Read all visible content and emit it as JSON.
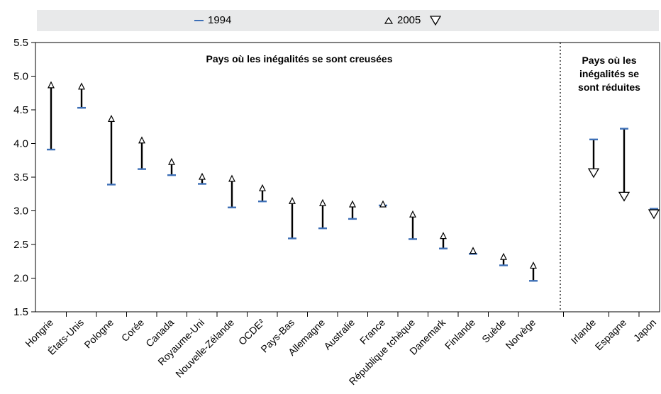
{
  "legend": {
    "item_1994": "1994",
    "item_2005": "2005"
  },
  "colors": {
    "marker_1994": "#3d6fb6",
    "range_line": "#000000",
    "plot_background": "#ffffff",
    "legend_background": "#e8e9ea"
  },
  "chart_data": {
    "type": "range-dot",
    "title": "",
    "xlabel": "",
    "ylabel": "",
    "ylim": [
      1.5,
      5.5
    ],
    "yticks": [
      "1.5",
      "2.0",
      "2.5",
      "3.0",
      "3.5",
      "4.0",
      "4.5",
      "5.0",
      "5.5"
    ],
    "grid": false,
    "legend_position": "top",
    "regions": [
      {
        "title_lines": [
          "Pays où les inégalités se sont creusées"
        ]
      },
      {
        "title_lines": [
          "Pays où les",
          "inégalités se",
          "sont réduites"
        ]
      }
    ],
    "categories": [
      "Hongrie",
      "États-Unis",
      "Pologne",
      "Corée",
      "Canada",
      "Royaume-Uni",
      "Nouvelle-Zélande",
      "OCDE²",
      "Pays-Bas",
      "Allemagne",
      "Australie",
      "France",
      "République tchèque",
      "Danemark",
      "Finlande",
      "Suède",
      "Norvège",
      "Irlande",
      "Espagne",
      "Japon"
    ],
    "series": [
      {
        "name": "1994",
        "values": [
          3.91,
          4.53,
          3.39,
          3.62,
          3.53,
          3.4,
          3.05,
          3.14,
          2.59,
          2.74,
          2.88,
          3.08,
          2.58,
          2.44,
          2.36,
          2.19,
          1.96,
          4.06,
          4.22,
          3.03
        ]
      },
      {
        "name": "2005",
        "values": [
          4.87,
          4.85,
          4.37,
          4.05,
          3.73,
          3.51,
          3.48,
          3.34,
          3.15,
          3.12,
          3.1,
          3.1,
          2.95,
          2.63,
          2.41,
          2.32,
          2.19,
          3.52,
          3.17,
          2.91
        ]
      }
    ]
  }
}
